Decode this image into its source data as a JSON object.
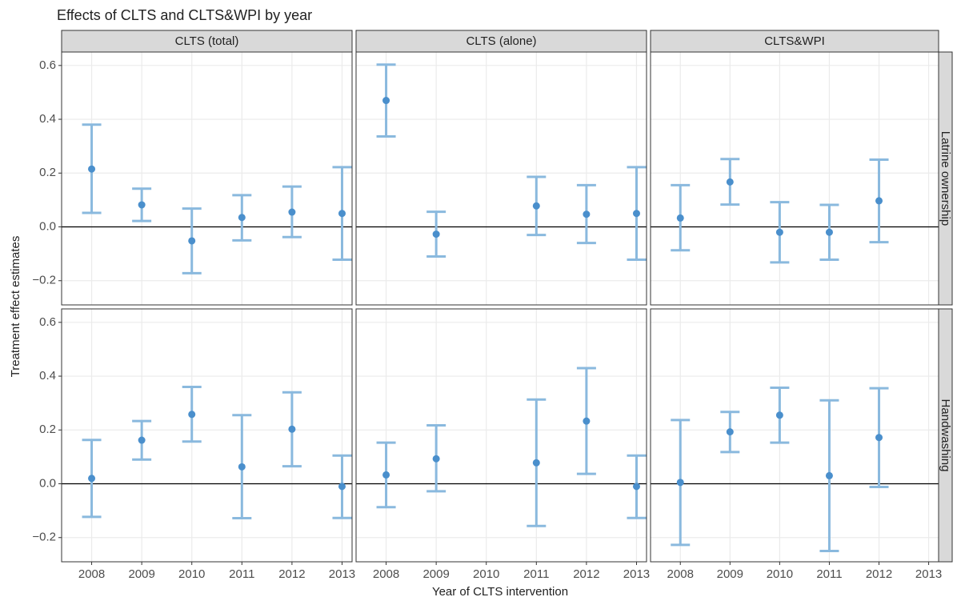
{
  "chart_data": {
    "type": "errorbar",
    "title": "Effects of CLTS and CLTS&WPI by year",
    "x_label": "Year of CLTS intervention",
    "y_label": "Treatment effect estimates",
    "columns": [
      "CLTS (total)",
      "CLTS (alone)",
      "CLTS&WPI"
    ],
    "rows": [
      "Latrine ownership",
      "Handwashing"
    ],
    "categories": [
      "2008",
      "2009",
      "2010",
      "2011",
      "2012",
      "2013"
    ],
    "ylim": [
      -0.29,
      0.65
    ],
    "yticks": [
      {
        "value": -0.2,
        "label": "−0.2"
      },
      {
        "value": 0,
        "label": "0.0"
      },
      {
        "value": 0.2,
        "label": "0.2"
      },
      {
        "value": 0.4,
        "label": "0.4"
      },
      {
        "value": 0.6,
        "label": "0.6"
      }
    ],
    "reference_line": 0,
    "grid": true,
    "color": "#4a8fcc",
    "errorbar_color": "#8ab9de",
    "panels": [
      [
        {
          "values": [
            0.215,
            0.082,
            -0.052,
            0.035,
            0.055,
            0.05
          ],
          "lower": [
            0.052,
            0.022,
            -0.172,
            -0.05,
            -0.038,
            -0.122
          ],
          "upper": [
            0.38,
            0.142,
            0.068,
            0.118,
            0.15,
            0.222
          ]
        },
        {
          "values": [
            0.47,
            -0.027,
            null,
            0.078,
            0.047,
            0.05
          ],
          "lower": [
            0.336,
            -0.11,
            null,
            -0.03,
            -0.06,
            -0.122
          ],
          "upper": [
            0.603,
            0.056,
            null,
            0.186,
            0.155,
            0.222
          ]
        },
        {
          "values": [
            0.033,
            0.167,
            -0.02,
            -0.02,
            0.097,
            null
          ],
          "lower": [
            -0.087,
            0.083,
            -0.132,
            -0.122,
            -0.057,
            null
          ],
          "upper": [
            0.155,
            0.252,
            0.092,
            0.082,
            0.25,
            null
          ]
        }
      ],
      [
        {
          "values": [
            0.02,
            0.162,
            0.258,
            0.063,
            0.203,
            -0.01
          ],
          "lower": [
            -0.123,
            0.09,
            0.157,
            -0.128,
            0.065,
            -0.127
          ],
          "upper": [
            0.163,
            0.233,
            0.36,
            0.255,
            0.34,
            0.105
          ]
        },
        {
          "values": [
            0.033,
            0.093,
            null,
            0.078,
            0.233,
            -0.01
          ],
          "lower": [
            -0.087,
            -0.028,
            null,
            -0.157,
            0.037,
            -0.127
          ],
          "upper": [
            0.153,
            0.217,
            null,
            0.313,
            0.43,
            0.105
          ]
        },
        {
          "values": [
            0.005,
            0.193,
            0.255,
            0.03,
            0.172,
            null
          ],
          "lower": [
            -0.227,
            0.118,
            0.153,
            -0.25,
            -0.012,
            null
          ],
          "upper": [
            0.237,
            0.267,
            0.357,
            0.31,
            0.355,
            null
          ]
        }
      ]
    ]
  }
}
